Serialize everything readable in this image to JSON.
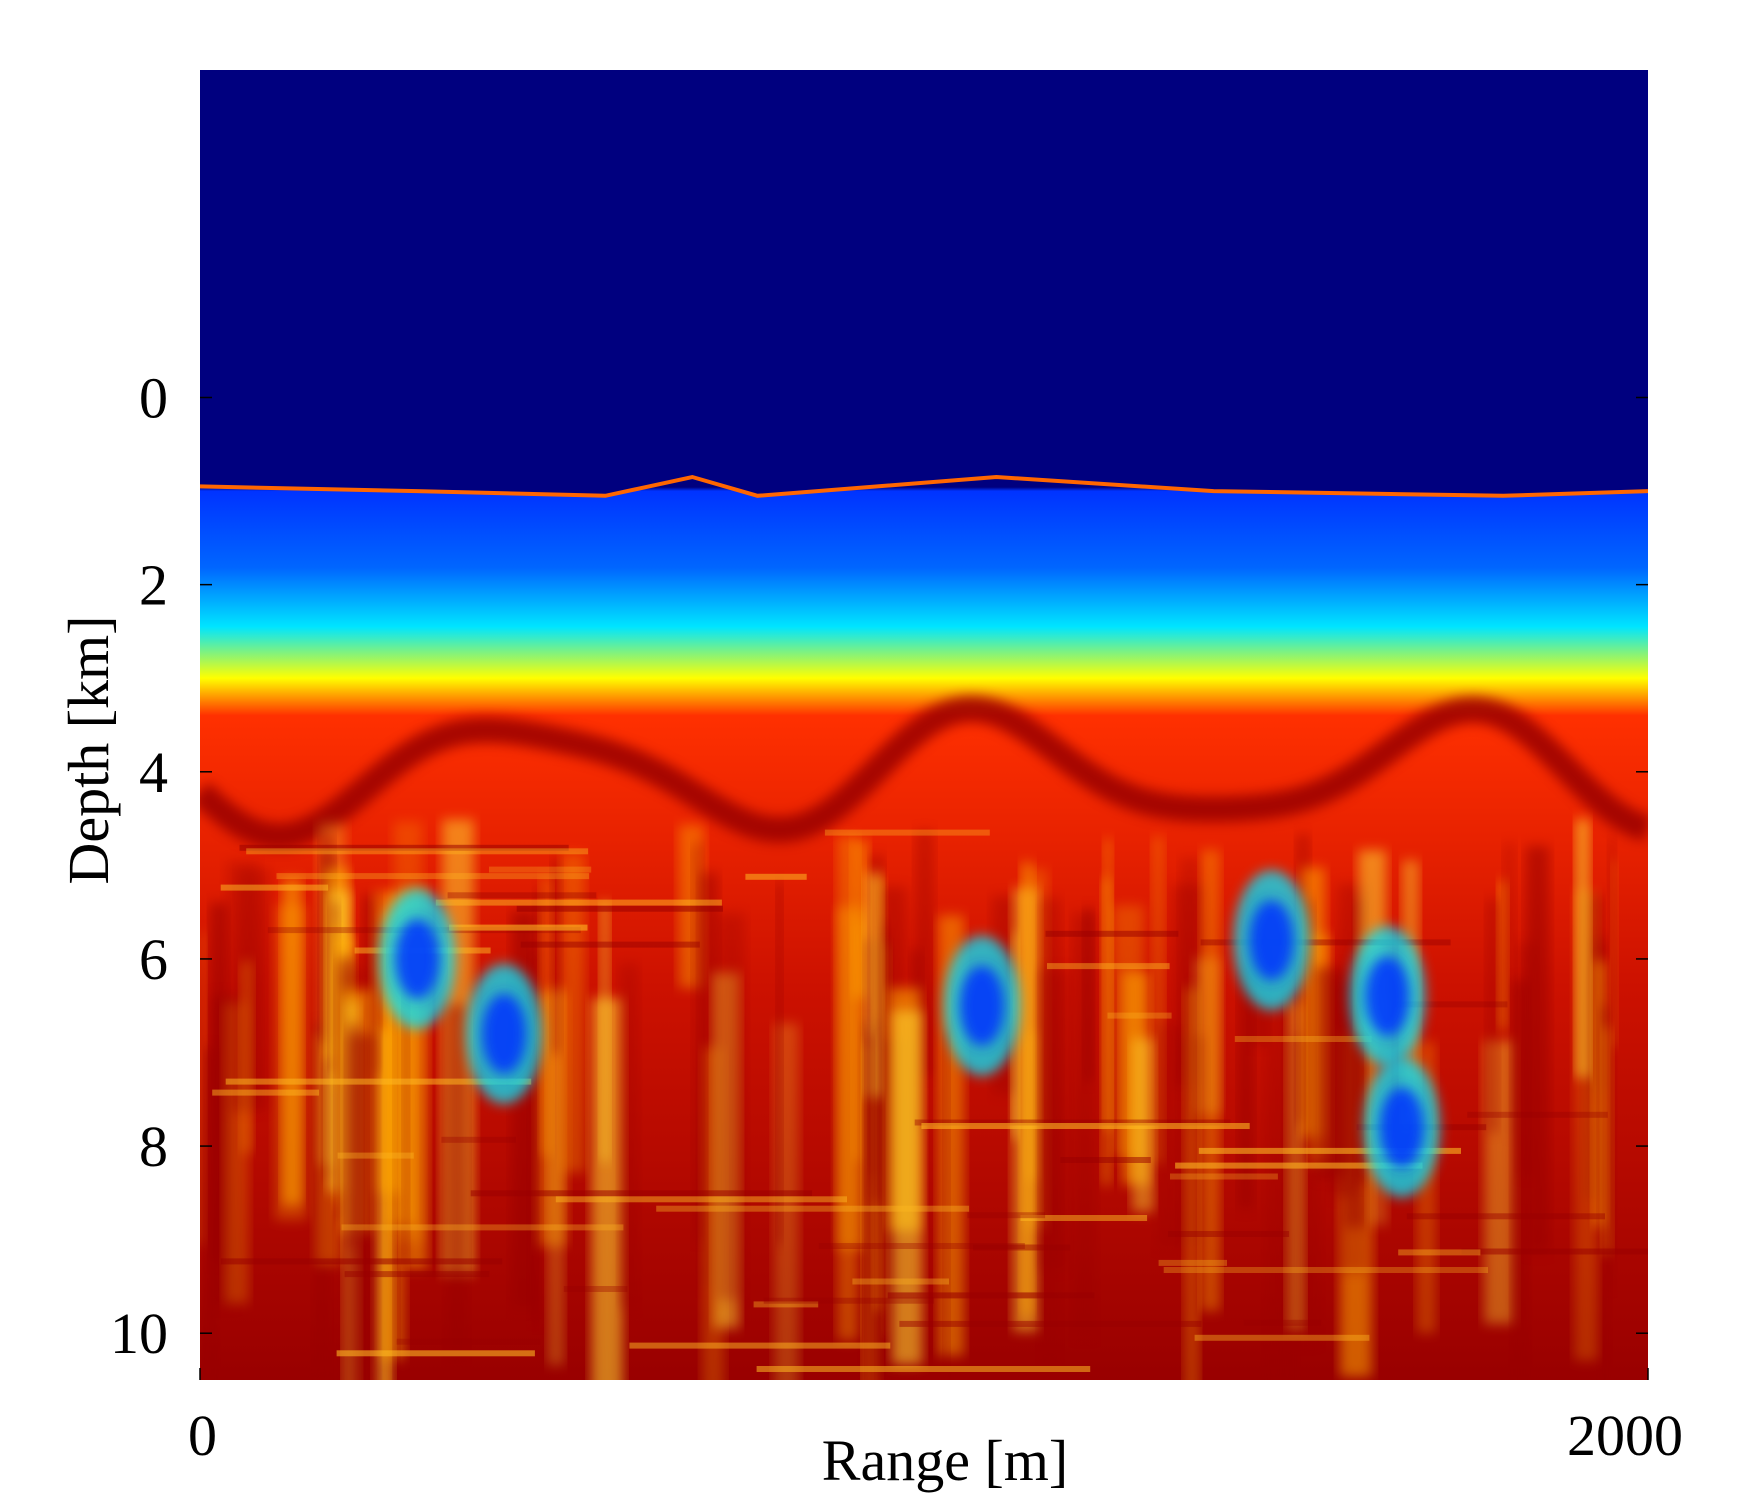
{
  "chart_data": {
    "type": "heatmap",
    "title": "",
    "xlabel": "Range [m]",
    "ylabel": "Depth [km]",
    "x_ticks": [
      {
        "value": 0,
        "label": "0"
      },
      {
        "value": 2000,
        "label": "2000"
      }
    ],
    "y_ticks": [
      {
        "value": 0,
        "label": "0"
      },
      {
        "value": 2,
        "label": "2"
      },
      {
        "value": 4,
        "label": "4"
      },
      {
        "value": 6,
        "label": "6"
      },
      {
        "value": 8,
        "label": "8"
      },
      {
        "value": 10,
        "label": "10"
      }
    ],
    "xlim": [
      0,
      2000
    ],
    "ylim_top_to_bottom": [
      -3.5,
      10.5
    ],
    "grid": false,
    "legend": "none",
    "colormap": "jet",
    "colors": {
      "water": "#00007f",
      "shallow": "#0033ff",
      "mid": "#00e5ff",
      "transition": "#ffff00",
      "deep": "#ff3000",
      "deepest": "#990000"
    },
    "surface_depth_profile_km": [
      {
        "range_m": 0,
        "depth_km": 0.95
      },
      {
        "range_m": 300,
        "depth_km": 1.0
      },
      {
        "range_m": 560,
        "depth_km": 1.05
      },
      {
        "range_m": 620,
        "depth_km": 0.95
      },
      {
        "range_m": 680,
        "depth_km": 0.85
      },
      {
        "range_m": 770,
        "depth_km": 1.05
      },
      {
        "range_m": 1100,
        "depth_km": 0.85
      },
      {
        "range_m": 1400,
        "depth_km": 1.0
      },
      {
        "range_m": 1800,
        "depth_km": 1.05
      },
      {
        "range_m": 2000,
        "depth_km": 1.0
      }
    ],
    "bands_km": [
      {
        "name": "shallow",
        "from_depth": 1.0,
        "to_depth": 2.1
      },
      {
        "name": "mid",
        "from_depth": 2.1,
        "to_depth": 2.8
      },
      {
        "name": "transition",
        "from_depth": 2.8,
        "to_depth": 3.2
      },
      {
        "name": "deep",
        "from_depth": 3.2,
        "to_depth": 10.5
      }
    ],
    "anomalies_km": [
      {
        "range_m": 300,
        "depth_km": 6.0
      },
      {
        "range_m": 420,
        "depth_km": 6.8
      },
      {
        "range_m": 1080,
        "depth_km": 6.5
      },
      {
        "range_m": 1480,
        "depth_km": 5.8
      },
      {
        "range_m": 1640,
        "depth_km": 6.4
      },
      {
        "range_m": 1660,
        "depth_km": 7.8
      }
    ]
  }
}
